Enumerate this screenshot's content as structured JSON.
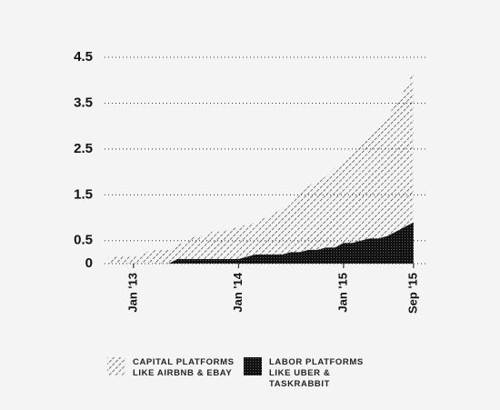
{
  "chart_data": {
    "type": "area",
    "categories": [
      null,
      null,
      null,
      "Jan '13",
      null,
      null,
      null,
      null,
      null,
      null,
      null,
      null,
      null,
      null,
      null,
      "Jan '14",
      null,
      null,
      null,
      null,
      null,
      null,
      null,
      null,
      null,
      null,
      null,
      "Jan '15",
      null,
      null,
      null,
      null,
      null,
      null,
      null,
      "Sep '15"
    ],
    "series": [
      {
        "name": "CAPITAL PLATFORMS LIKE AIRBNB & EBAY",
        "color": "#222222",
        "pattern": "hatch",
        "values": [
          0.1,
          0.15,
          0.15,
          0.15,
          0.2,
          0.3,
          0.3,
          0.3,
          0.3,
          0.4,
          0.5,
          0.5,
          0.6,
          0.6,
          0.65,
          0.7,
          0.7,
          0.7,
          0.8,
          0.9,
          1.0,
          1.05,
          1.25,
          1.4,
          1.5,
          1.55,
          1.75,
          1.75,
          1.95,
          2.1,
          2.25,
          2.45,
          2.6,
          2.8,
          3.0,
          3.3
        ]
      },
      {
        "name": "LABOR PLATFORMS LIKE UBER & TASKRABBIT",
        "color": "#111111",
        "pattern": "dots",
        "values": [
          0,
          0,
          0,
          0,
          0,
          0,
          0,
          0,
          0.1,
          0.1,
          0.1,
          0.1,
          0.1,
          0.1,
          0.1,
          0.1,
          0.15,
          0.2,
          0.2,
          0.2,
          0.2,
          0.25,
          0.25,
          0.3,
          0.3,
          0.35,
          0.35,
          0.45,
          0.45,
          0.5,
          0.55,
          0.55,
          0.6,
          0.7,
          0.8,
          0.9
        ]
      }
    ],
    "ylim": [
      0,
      4.5
    ],
    "yticks": [
      0,
      0.5,
      1.5,
      2.5,
      3.5,
      4.5
    ],
    "grid": true
  }
}
